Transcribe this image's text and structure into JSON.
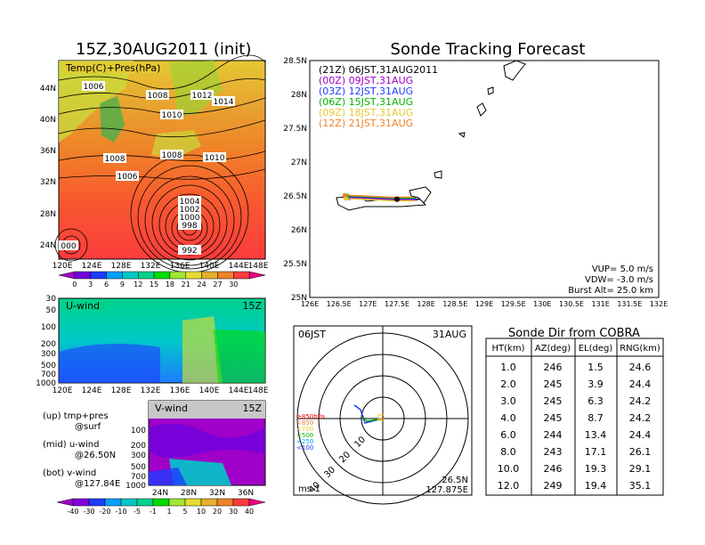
{
  "left": {
    "title": "15Z,30AUG2011 (init)",
    "map_label": "Temp(C)+Pres(hPa)",
    "lat_ticks": [
      "44N",
      "40N",
      "36N",
      "32N",
      "28N",
      "24N"
    ],
    "lon_ticks": [
      "120E",
      "124E",
      "128E",
      "132E",
      "136E",
      "140E",
      "144E",
      "148E"
    ],
    "isobar_labels": [
      "1006",
      "1008",
      "1012",
      "1014",
      "1010",
      "1008",
      "1010",
      "1006",
      "1004",
      "1002",
      "1000",
      "998",
      "992",
      "000"
    ],
    "temp_colorbar": [
      "0",
      "3",
      "6",
      "9",
      "12",
      "15",
      "18",
      "21",
      "24",
      "27",
      "30"
    ],
    "temp_colors": [
      "#a000c8",
      "#6e00dc",
      "#1e3cff",
      "#00a0ff",
      "#00c8c8",
      "#00d28c",
      "#00dc00",
      "#a0e632",
      "#e6dc32",
      "#e6af2d",
      "#f08228",
      "#fa3c3c",
      "#f00082"
    ],
    "u_wind": {
      "label": "U-wind",
      "time": "15Z",
      "y_ticks": [
        "30",
        "50",
        "100",
        "200",
        "300",
        "500",
        "700",
        "1000"
      ],
      "x_ticks": [
        "120E",
        "124E",
        "128E",
        "132E",
        "136E",
        "140E",
        "144E",
        "148E"
      ]
    },
    "v_wind": {
      "label": "V-wind",
      "time": "15Z",
      "y_ticks": [
        "100",
        "200",
        "300",
        "500",
        "700",
        "1000"
      ],
      "x_ticks": [
        "24N",
        "28N",
        "32N",
        "36N"
      ]
    },
    "notes": [
      {
        "head": "(up) tmp+pres",
        "sub": "@surf"
      },
      {
        "head": "(mid) u-wind",
        "sub": "@26.50N"
      },
      {
        "head": "(bot) v-wind",
        "sub": "@127.84E"
      }
    ],
    "wind_colorbar": [
      "-40",
      "-30",
      "-20",
      "-10",
      "-5",
      "-1",
      "1",
      "5",
      "10",
      "20",
      "30",
      "40"
    ],
    "wind_colors": [
      "#a000c8",
      "#8200dc",
      "#1e3cff",
      "#00a0ff",
      "#00c8c8",
      "#00d28c",
      "#00dc00",
      "#a0e632",
      "#e6dc32",
      "#e6af2d",
      "#f08228",
      "#fa3c3c",
      "#f00082"
    ]
  },
  "tracking": {
    "title": "Sonde Tracking Forecast",
    "lat_ticks": [
      "28.5N",
      "28N",
      "27.5N",
      "27N",
      "26.5N",
      "26N",
      "25.5N",
      "25N"
    ],
    "lon_ticks": [
      "126E",
      "126.5E",
      "127E",
      "127.5E",
      "128E",
      "128.5E",
      "129E",
      "129.5E",
      "130E",
      "130.5E",
      "131E",
      "131.5E",
      "132E"
    ],
    "legend": [
      {
        "text": "(21Z)  06JST,31AUG2011",
        "color": "#000000"
      },
      {
        "text": "(00Z)  09JST,31AUG",
        "color": "#a000c8"
      },
      {
        "text": "(03Z)  12JST,31AUG",
        "color": "#1e3cff"
      },
      {
        "text": "(06Z)  15JST,31AUG",
        "color": "#00b400"
      },
      {
        "text": "(09Z)  18JST,31AUG",
        "color": "#e6c832"
      },
      {
        "text": "(12Z)  21JST,31AUG",
        "color": "#f08228"
      }
    ],
    "params": [
      "VUP=  5.0  m/s",
      "VDW= -3.0  m/s",
      "Burst Alt=  25.0  km"
    ]
  },
  "polar": {
    "time_label": "06JST",
    "date_label": "31AUG",
    "unit": "ms-1",
    "location": [
      "26.5N",
      "127.875E"
    ],
    "ring_labels": [
      "10",
      "20",
      "30",
      "40"
    ],
    "level_legend": [
      {
        "text": "≥850hPa",
        "color": "#f00000"
      },
      {
        "text": "<850",
        "color": "#f08228"
      },
      {
        "text": "<700",
        "color": "#e6c832"
      },
      {
        "text": "<500",
        "color": "#00b400"
      },
      {
        "text": "<250",
        "color": "#00a0ff"
      },
      {
        "text": "<100",
        "color": "#1e3cff"
      }
    ]
  },
  "table": {
    "title": "Sonde Dir from COBRA",
    "headers": [
      "HT(km)",
      "AZ(deg)",
      "EL(deg)",
      "RNG(km)"
    ],
    "rows": [
      [
        "1.0",
        "246",
        "1.5",
        "24.6"
      ],
      [
        "2.0",
        "245",
        "3.9",
        "24.4"
      ],
      [
        "3.0",
        "245",
        "6.3",
        "24.2"
      ],
      [
        "4.0",
        "245",
        "8.7",
        "24.2"
      ],
      [
        "6.0",
        "244",
        "13.4",
        "24.4"
      ],
      [
        "8.0",
        "243",
        "17.1",
        "26.1"
      ],
      [
        "10.0",
        "246",
        "19.3",
        "29.1"
      ],
      [
        "12.0",
        "249",
        "19.4",
        "35.1"
      ]
    ]
  },
  "chart_data": [
    {
      "type": "heatmap",
      "title": "15Z,30AUG2011 (init)",
      "label": "Temp(C)+Pres(hPa)",
      "xlim": [
        "120E",
        "148E"
      ],
      "ylim": [
        "24N",
        "44N"
      ]
    },
    {
      "type": "heatmap",
      "title": "U-wind",
      "y_ticks": [
        "30",
        "50",
        "100",
        "200",
        "300",
        "500",
        "700",
        "1000"
      ],
      "x_ticks": [
        "120E",
        "124E",
        "128E",
        "132E",
        "136E",
        "140E",
        "144E",
        "148E"
      ]
    },
    {
      "type": "heatmap",
      "title": "V-wind",
      "y_ticks": [
        "100",
        "200",
        "300",
        "500",
        "700",
        "1000"
      ],
      "x_ticks": [
        "24N",
        "28N",
        "32N",
        "36N"
      ]
    },
    {
      "type": "line",
      "title": "Sonde Tracking Forecast",
      "xlim": [
        126,
        132
      ],
      "ylim": [
        25,
        28.5
      ],
      "series": [
        {
          "name": "(21Z) 06JST,31AUG2011",
          "x": [
            127.875,
            127.5,
            127.0,
            126.7
          ],
          "y": [
            26.45,
            26.45,
            26.47,
            26.48
          ]
        }
      ]
    },
    {
      "type": "table",
      "title": "Sonde Dir from COBRA",
      "columns": [
        "HT(km)",
        "AZ(deg)",
        "EL(deg)",
        "RNG(km)"
      ],
      "rows": [
        [
          1.0,
          246,
          1.5,
          24.6
        ],
        [
          2.0,
          245,
          3.9,
          24.4
        ],
        [
          3.0,
          245,
          6.3,
          24.2
        ],
        [
          4.0,
          245,
          8.7,
          24.2
        ],
        [
          6.0,
          244,
          13.4,
          24.4
        ],
        [
          8.0,
          243,
          17.1,
          26.1
        ],
        [
          10.0,
          246,
          19.3,
          29.1
        ],
        [
          12.0,
          249,
          19.4,
          35.1
        ]
      ]
    }
  ]
}
